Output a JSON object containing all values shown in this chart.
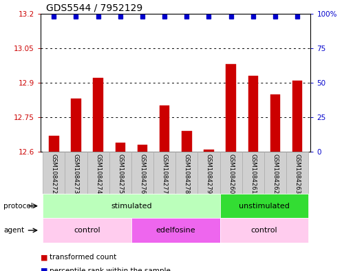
{
  "title": "GDS5544 / 7952129",
  "samples": [
    "GSM1084272",
    "GSM1084273",
    "GSM1084274",
    "GSM1084275",
    "GSM1084276",
    "GSM1084277",
    "GSM1084278",
    "GSM1084279",
    "GSM1084260",
    "GSM1084261",
    "GSM1084262",
    "GSM1084263"
  ],
  "red_values": [
    12.67,
    12.83,
    12.92,
    12.64,
    12.63,
    12.8,
    12.69,
    12.61,
    12.98,
    12.93,
    12.85,
    12.91
  ],
  "blue_values": [
    98,
    98,
    98,
    98,
    98,
    98,
    98,
    98,
    98,
    98,
    98,
    98
  ],
  "ylim_left": [
    12.6,
    13.2
  ],
  "ylim_right": [
    0,
    100
  ],
  "yticks_left": [
    12.6,
    12.75,
    12.9,
    13.05,
    13.2
  ],
  "yticks_right": [
    0,
    25,
    50,
    75,
    100
  ],
  "ytick_labels_right": [
    "0",
    "25",
    "50",
    "75",
    "100%"
  ],
  "protocol_groups": [
    {
      "label": "stimulated",
      "start": 0,
      "end": 7,
      "color": "#BBFFBB"
    },
    {
      "label": "unstimulated",
      "start": 8,
      "end": 11,
      "color": "#33DD33"
    }
  ],
  "agent_groups": [
    {
      "label": "control",
      "start": 0,
      "end": 3,
      "color": "#FFCCEE"
    },
    {
      "label": "edelfosine",
      "start": 4,
      "end": 7,
      "color": "#EE66EE"
    },
    {
      "label": "control",
      "start": 8,
      "end": 11,
      "color": "#FFCCEE"
    }
  ],
  "red_color": "#CC0000",
  "blue_color": "#0000CC",
  "background_color": "#ffffff",
  "title_fontsize": 10,
  "tick_fontsize": 7.5,
  "bar_width": 0.45
}
